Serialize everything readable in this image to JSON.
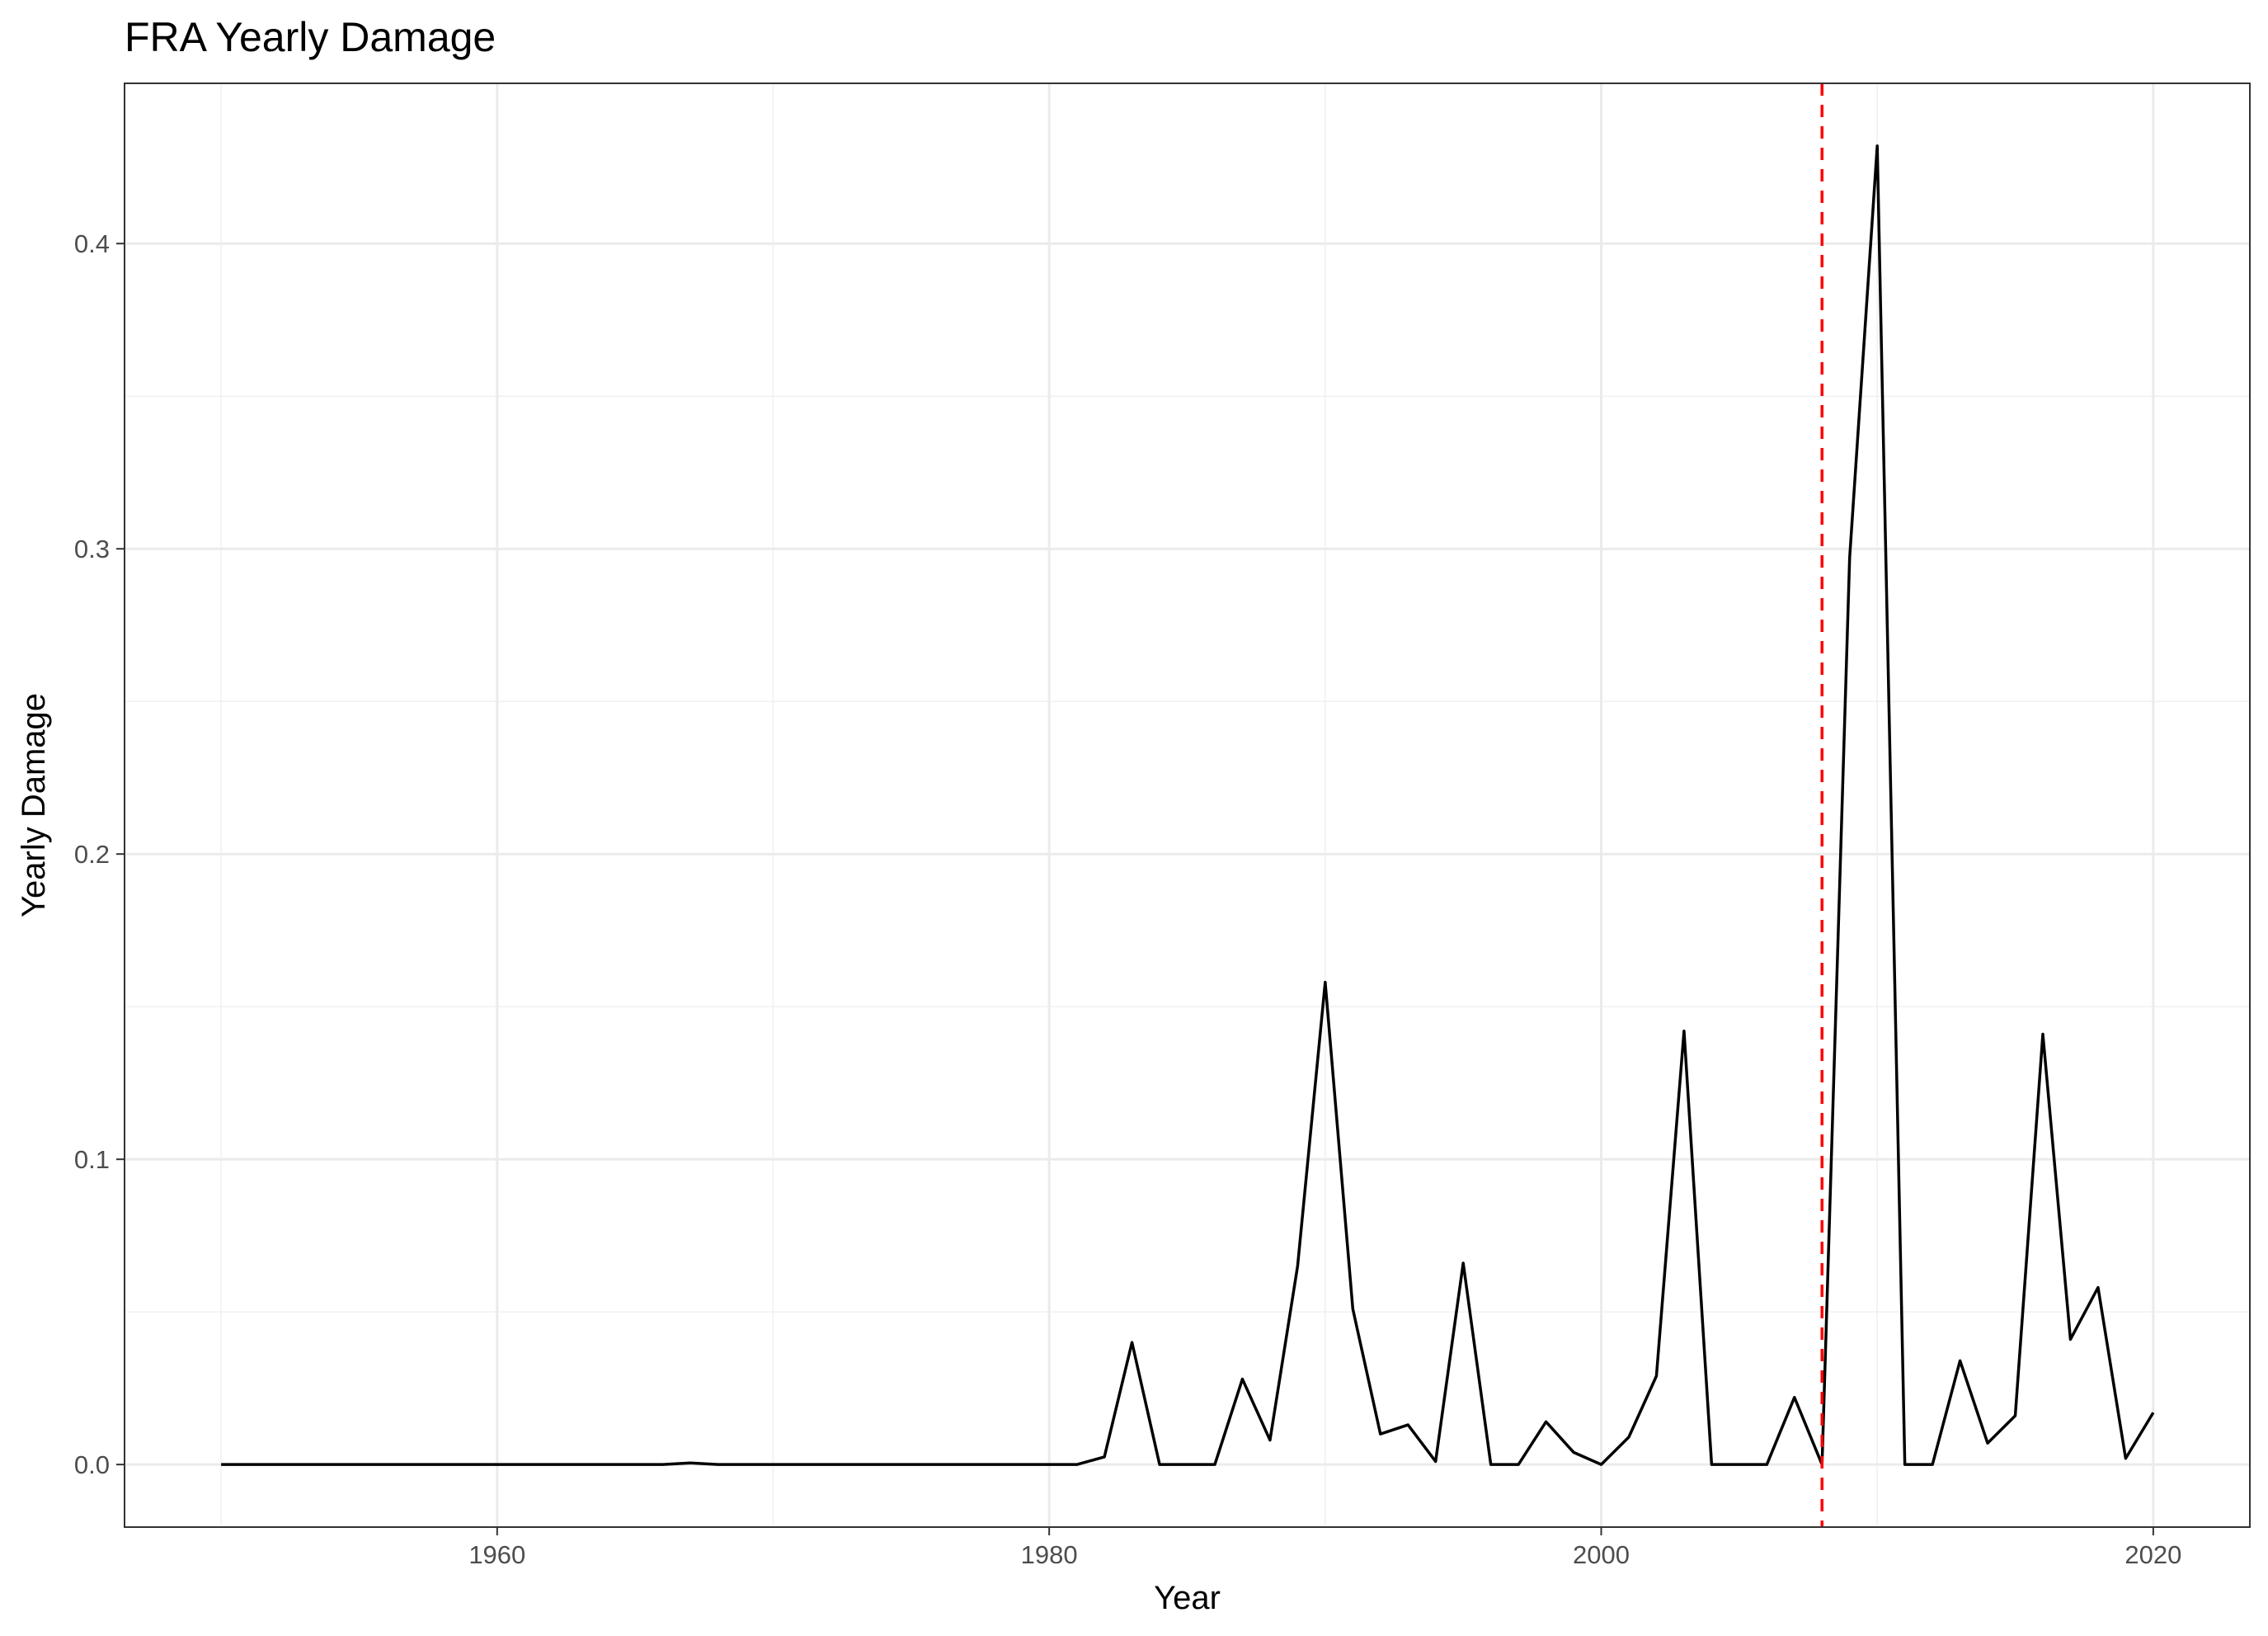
{
  "chart_data": {
    "type": "line",
    "title": "FRA Yearly Damage",
    "xlabel": "Year",
    "ylabel": "Yearly Damage",
    "xlim": [
      1946.5,
      2023.5
    ],
    "ylim": [
      -0.0205,
      0.4525
    ],
    "x_ticks": [
      1960,
      1980,
      2000,
      2020
    ],
    "x_tick_labels": [
      "1960",
      "1980",
      "2000",
      "2020"
    ],
    "x_minor_ticks": [
      1950,
      1970,
      1990,
      2010
    ],
    "y_ticks": [
      0.0,
      0.1,
      0.2,
      0.3,
      0.4
    ],
    "y_tick_labels": [
      "0.0",
      "0.1",
      "0.2",
      "0.3",
      "0.4"
    ],
    "y_minor_ticks": [
      0.05,
      0.15,
      0.25,
      0.35
    ],
    "grid": true,
    "legend": "none",
    "reference_line": {
      "axis": "x",
      "value": 2008,
      "color": "#ff0000",
      "style": "dashed"
    },
    "series": [
      {
        "color": "#000000",
        "x": [
          1950,
          1951,
          1952,
          1953,
          1954,
          1955,
          1956,
          1957,
          1958,
          1959,
          1960,
          1961,
          1962,
          1963,
          1964,
          1965,
          1966,
          1967,
          1968,
          1969,
          1970,
          1971,
          1972,
          1973,
          1974,
          1975,
          1976,
          1977,
          1978,
          1979,
          1980,
          1981,
          1982,
          1983,
          1984,
          1985,
          1986,
          1987,
          1988,
          1989,
          1990,
          1991,
          1992,
          1993,
          1994,
          1995,
          1996,
          1997,
          1998,
          1999,
          2000,
          2001,
          2002,
          2003,
          2004,
          2005,
          2006,
          2007,
          2008,
          2009,
          2010,
          2011,
          2012,
          2013,
          2014,
          2015,
          2016,
          2017,
          2018,
          2019,
          2020
        ],
        "y": [
          0,
          0,
          0,
          0,
          0,
          0,
          0,
          0,
          0,
          0,
          0,
          0,
          0,
          0,
          0,
          0,
          0,
          0.0005,
          0,
          0,
          0,
          0,
          0,
          0,
          0,
          0,
          0,
          0,
          0,
          0,
          0,
          0,
          0.0025,
          0.04,
          0,
          0,
          0,
          0.028,
          0.008,
          0.065,
          0.158,
          0.051,
          0.01,
          0.013,
          0.001,
          0.066,
          0,
          0,
          0.014,
          0.004,
          0,
          0.009,
          0.029,
          0.142,
          0,
          0,
          0,
          0.022,
          0,
          0.297,
          0.432,
          0,
          0,
          0.034,
          0.007,
          0.016,
          0.141,
          0.041,
          0.058,
          0.002,
          0.017
        ]
      }
    ]
  }
}
